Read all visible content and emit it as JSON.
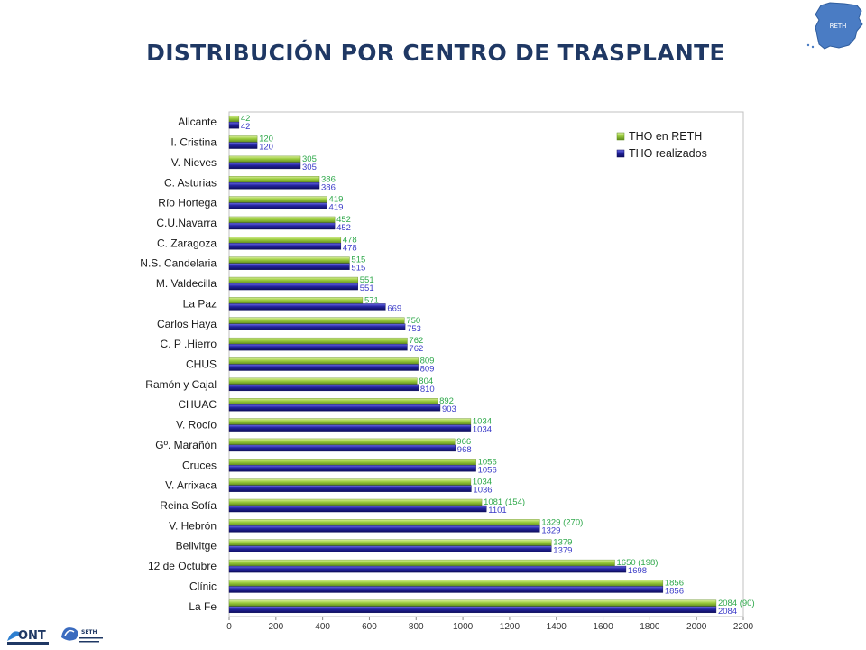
{
  "title": "DISTRIBUCIÓN POR CENTRO DE TRASPLANTE",
  "logos": {
    "map_label": "RETH",
    "ont_label": "ONT",
    "seth_label": "SETH"
  },
  "colors": {
    "series_reth": "#92c13a",
    "series_realizados": "#1f1f9e",
    "reth_label": "#2ea84a",
    "realizados_label": "#3b3bc8",
    "title": "#1f3864"
  },
  "chart_data": {
    "type": "bar",
    "orientation": "horizontal",
    "categories": [
      "Alicante",
      "I. Cristina",
      "V. Nieves",
      "C. Asturias",
      "Río Hortega",
      "C.U.Navarra",
      "C. Zaragoza",
      "N.S. Candelaria",
      "M. Valdecilla",
      "La Paz",
      "Carlos Haya",
      "C. P .Hierro",
      "CHUS",
      "Ramón y Cajal",
      "CHUAC",
      "V. Rocío",
      "Gº. Marañón",
      "Cruces",
      "V. Arrixaca",
      "Reina Sofía",
      "V. Hebrón",
      "Bellvitge",
      "12 de Octubre",
      "Clínic",
      "La Fe"
    ],
    "series": [
      {
        "name": "THO en RETH",
        "values": [
          42,
          120,
          305,
          386,
          419,
          452,
          478,
          515,
          551,
          571,
          750,
          762,
          809,
          804,
          892,
          1034,
          966,
          1056,
          1034,
          1081,
          1329,
          1379,
          1650,
          1856,
          2084
        ],
        "labels": [
          "42",
          "120",
          "305",
          "386",
          "419",
          "452",
          "478",
          "515",
          "551",
          "571",
          "750",
          "762",
          "809",
          "804",
          "892",
          "1034",
          "966",
          "1056",
          "1034",
          "1081 (154)",
          "1329 (270)",
          "1379",
          "1650 (198)",
          "1856",
          "2084 (90)"
        ]
      },
      {
        "name": "THO realizados",
        "values": [
          42,
          120,
          305,
          386,
          419,
          452,
          478,
          515,
          551,
          669,
          753,
          762,
          809,
          810,
          903,
          1034,
          968,
          1056,
          1036,
          1101,
          1329,
          1379,
          1698,
          1856,
          2084
        ],
        "labels": [
          "42",
          "120",
          "305",
          "386",
          "419",
          "452",
          "478",
          "515",
          "551",
          "669",
          "753",
          "762",
          "809",
          "810",
          "903",
          "1034",
          "968",
          "1056",
          "1036",
          "1101",
          "1329",
          "1379",
          "1698",
          "1856",
          "2084"
        ]
      }
    ],
    "xlim": [
      0,
      2200
    ],
    "xticks": [
      "0",
      "200",
      "400",
      "600",
      "800",
      "1000",
      "1200",
      "1400",
      "1600",
      "1800",
      "2000",
      "2200"
    ],
    "grid": false,
    "legend_position": "top-right"
  }
}
